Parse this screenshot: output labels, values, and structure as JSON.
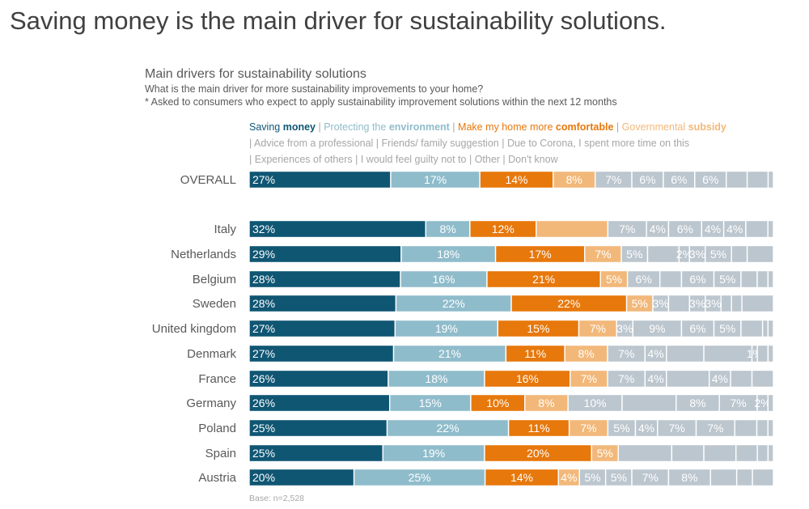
{
  "headline": "Saving money is the main driver for sustainability solutions.",
  "chart_title": "Main drivers for sustainability solutions",
  "chart_subtitle_1": "What is the main driver for more sustainability improvements to your home?",
  "chart_subtitle_2": "* Asked to consumers who expect to apply sustainability improvement solutions within the next 12 months",
  "base_note": "Base: n=2,528",
  "legend": [
    {
      "pre": "Saving ",
      "bold": "money",
      "color": "#0f5673"
    },
    {
      "pre": "Protecting the ",
      "bold": "environment",
      "color": "#8fbccb"
    },
    {
      "pre": "Make my home more ",
      "bold": "comfortable",
      "color": "#e7780c"
    },
    {
      "pre": "Governmental ",
      "bold": "subsidy",
      "color": "#f2b87a"
    },
    {
      "pre": "Advice from a professional",
      "bold": "",
      "color": "#a6a6a6"
    },
    {
      "pre": "Friends/ family suggestion",
      "bold": "",
      "color": "#a6a6a6"
    },
    {
      "pre": "Due to Corona, I spent more time on this",
      "bold": "",
      "color": "#a6a6a6"
    },
    {
      "pre": "Experiences of others",
      "bold": "",
      "color": "#a6a6a6"
    },
    {
      "pre": "I would feel guilty not to",
      "bold": "",
      "color": "#a6a6a6"
    },
    {
      "pre": "Other",
      "bold": "",
      "color": "#a6a6a6"
    },
    {
      "pre": "Don't know",
      "bold": "",
      "color": "#a6a6a6"
    }
  ],
  "chart_data": {
    "type": "bar",
    "orientation": "horizontal",
    "stacked": true,
    "unit": "%",
    "grid": false,
    "categories": [
      "OVERALL",
      "Italy",
      "Netherlands",
      "Belgium",
      "Sweden",
      "United kingdom",
      "Denmark",
      "France",
      "Germany",
      "Poland",
      "Spain",
      "Austria"
    ],
    "series": [
      {
        "name": "Saving money",
        "color": "#0f5673",
        "values": [
          27,
          32,
          29,
          28,
          28,
          27,
          27,
          26,
          26,
          25,
          25,
          20
        ]
      },
      {
        "name": "Protecting the environment",
        "color": "#8fbccb",
        "values": [
          17,
          8,
          18,
          16,
          22,
          19,
          21,
          18,
          15,
          22,
          19,
          25
        ]
      },
      {
        "name": "Make my home more comfortable",
        "color": "#e7780c",
        "values": [
          14,
          12,
          17,
          21,
          22,
          15,
          11,
          16,
          10,
          11,
          20,
          14
        ]
      },
      {
        "name": "Governmental subsidy",
        "color": "#f2b87a",
        "values": [
          8,
          13,
          7,
          5,
          5,
          7,
          8,
          7,
          8,
          7,
          5,
          4
        ]
      },
      {
        "name": "Advice from a professional",
        "color": "#bcc6ce",
        "values": [
          7,
          7,
          5,
          6,
          3,
          3,
          7,
          7,
          10,
          5,
          10,
          5
        ]
      },
      {
        "name": "Friends/ family suggestion",
        "color": "#bcc6ce",
        "values": [
          6,
          4,
          6,
          4,
          4,
          9,
          4,
          4,
          10,
          4,
          6,
          5
        ]
      },
      {
        "name": "Due to Corona, I spent more time on this",
        "color": "#bcc6ce",
        "values": [
          6,
          6,
          2,
          6,
          3,
          6,
          7,
          8,
          8,
          7,
          6,
          7
        ]
      },
      {
        "name": "Experiences of others",
        "color": "#bcc6ce",
        "values": [
          6,
          4,
          3,
          5,
          3,
          5,
          9,
          4,
          7,
          7,
          4,
          8
        ]
      },
      {
        "name": "I would feel guilty not to",
        "color": "#bcc6ce",
        "values": [
          4,
          4,
          5,
          3,
          2,
          4,
          1,
          4,
          2,
          4,
          2,
          5
        ]
      },
      {
        "name": "Other",
        "color": "#bcc6ce",
        "values": [
          4,
          4,
          3,
          2,
          2,
          1,
          2,
          4,
          1,
          2,
          1,
          3
        ]
      },
      {
        "name": "Don't know",
        "color": "#bcc6ce",
        "values": [
          1,
          1,
          5,
          1,
          6,
          1,
          1,
          0,
          0,
          1,
          0,
          4
        ]
      }
    ],
    "labels": [
      [
        "27%",
        "17%",
        "14%",
        "8%",
        "7%",
        "6%",
        "6%",
        "6%",
        "",
        "",
        ""
      ],
      [
        "32%",
        "8%",
        "12%",
        "",
        "7%",
        "4%",
        "6%",
        "4%",
        "4%",
        "",
        ""
      ],
      [
        "29%",
        "18%",
        "17%",
        "7%",
        "5%",
        "",
        "2%",
        "3%",
        "5%",
        "",
        ""
      ],
      [
        "28%",
        "16%",
        "21%",
        "5%",
        "6%",
        "",
        "6%",
        "5%",
        "",
        "",
        ""
      ],
      [
        "28%",
        "22%",
        "22%",
        "5%",
        "3%",
        "",
        "3%",
        "3%",
        "",
        "",
        ""
      ],
      [
        "27%",
        "19%",
        "15%",
        "7%",
        "3%",
        "9%",
        "6%",
        "5%",
        "",
        "",
        ""
      ],
      [
        "27%",
        "21%",
        "11%",
        "8%",
        "7%",
        "4%",
        "",
        "",
        "1%",
        "",
        ""
      ],
      [
        "26%",
        "18%",
        "16%",
        "7%",
        "7%",
        "4%",
        "",
        "4%",
        "",
        "",
        ""
      ],
      [
        "26%",
        "15%",
        "10%",
        "8%",
        "10%",
        "",
        "8%",
        "7%",
        "2%",
        "",
        ""
      ],
      [
        "25%",
        "22%",
        "11%",
        "7%",
        "5%",
        "4%",
        "7%",
        "7%",
        "",
        "",
        ""
      ],
      [
        "25%",
        "19%",
        "20%",
        "5%",
        "",
        "",
        "",
        "",
        "",
        "",
        ""
      ],
      [
        "20%",
        "25%",
        "14%",
        "4%",
        "5%",
        "5%",
        "7%",
        "8%",
        "",
        "",
        ""
      ]
    ]
  }
}
